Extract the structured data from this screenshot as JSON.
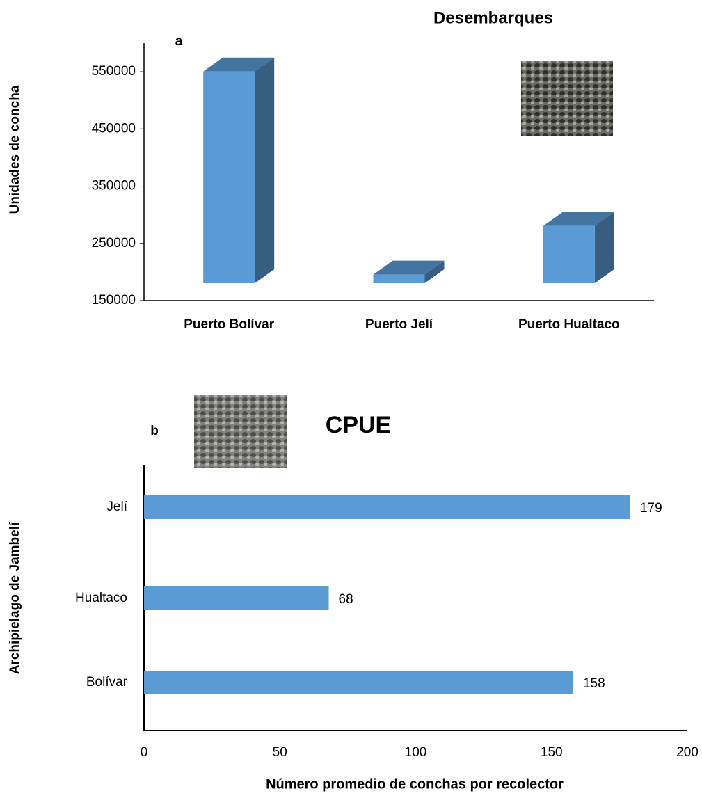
{
  "chart_data": [
    {
      "type": "bar3d",
      "title": "Desembarques",
      "panel_label": "a",
      "y_label": "Unidades de concha",
      "categories": [
        "Puerto Bolívar",
        "Puerto Jelí",
        "Puerto Hualtaco"
      ],
      "values": [
        520000,
        165000,
        250000
      ],
      "color": "#5b9bd5",
      "ylim": [
        150000,
        600000
      ],
      "yticks": [
        150000,
        250000,
        350000,
        450000,
        550000
      ]
    },
    {
      "type": "hbar",
      "title": "CPUE",
      "panel_label": "b",
      "y_label": "Archipielago de Jambelí",
      "x_label": "Número promedio de conchas por recolector",
      "categories": [
        "Jelí",
        "Hualtaco",
        "Bolívar"
      ],
      "values": [
        179,
        68,
        158
      ],
      "color": "#5b9bd5",
      "xlim": [
        0,
        200
      ],
      "xticks": [
        0,
        50,
        100,
        150,
        200
      ]
    }
  ]
}
